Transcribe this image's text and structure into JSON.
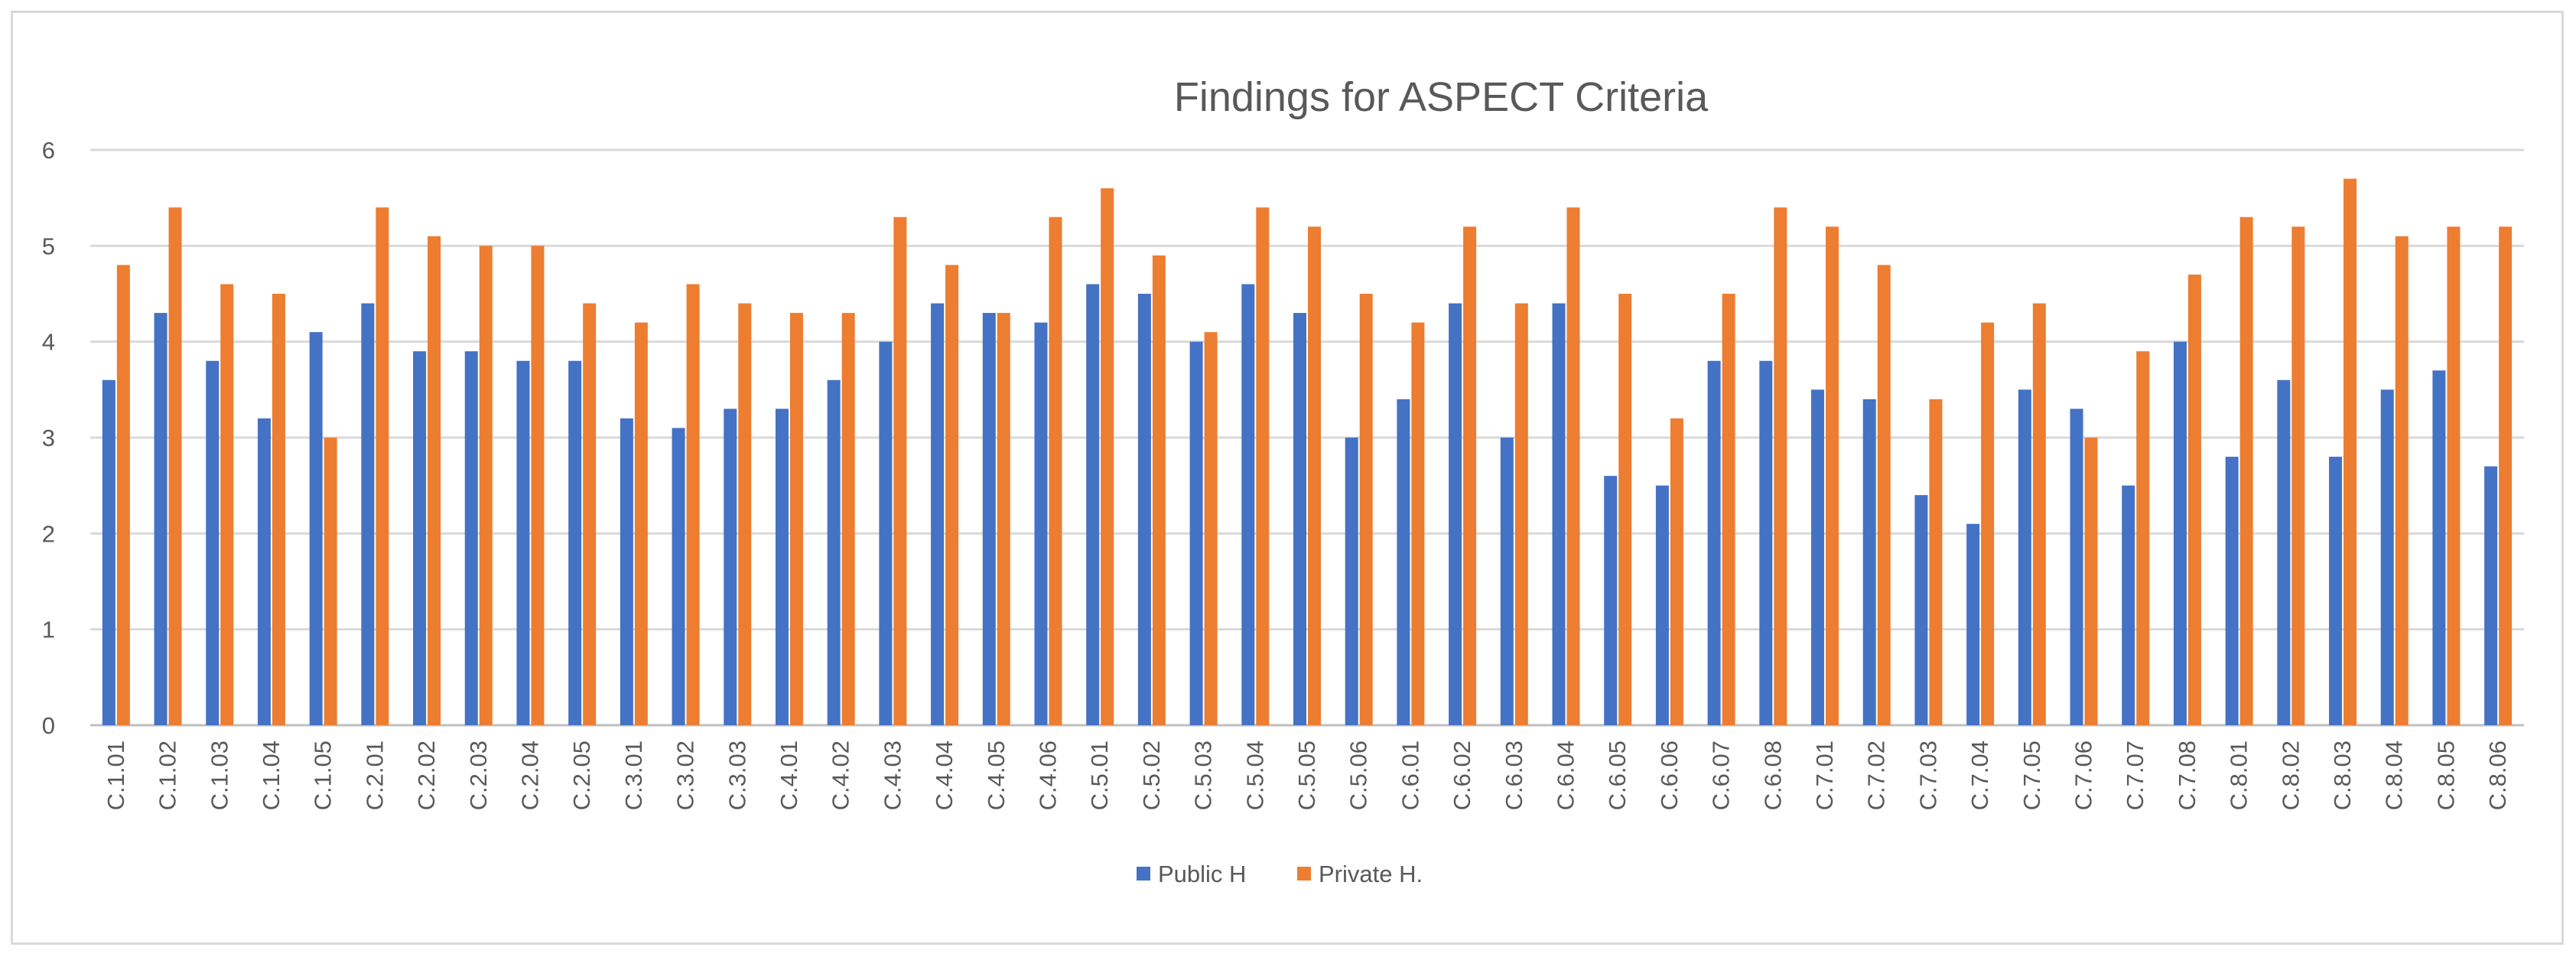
{
  "chart_data": {
    "type": "bar",
    "title": "Findings for ASPECT Criteria",
    "xlabel": "",
    "ylabel": "",
    "ylim": [
      0,
      6
    ],
    "yticks": [
      0,
      1,
      2,
      3,
      4,
      5,
      6
    ],
    "grid": "horizontal",
    "legend_position": "bottom",
    "categories": [
      "C.1.01",
      "C.1.02",
      "C.1.03",
      "C.1.04",
      "C.1.05",
      "C.2.01",
      "C.2.02",
      "C.2.03",
      "C.2.04",
      "C.2.05",
      "C.3.01",
      "C.3.02",
      "C.3.03",
      "C.4.01",
      "C.4.02",
      "C.4.03",
      "C.4.04",
      "C.4.05",
      "C.4.06",
      "C.5.01",
      "C.5.02",
      "C.5.03",
      "C.5.04",
      "C.5.05",
      "C.5.06",
      "C.6.01",
      "C.6.02",
      "C.6.03",
      "C.6.04",
      "C.6.05",
      "C.6.06",
      "C.6.07",
      "C.6.08",
      "C.7.01",
      "C.7.02",
      "C.7.03",
      "C.7.04",
      "C.7.05",
      "C.7.06",
      "C.7.07",
      "C.7.08",
      "C.8.01",
      "C.8.02",
      "C.8.03",
      "C.8.04",
      "C.8.05",
      "C.8.06"
    ],
    "series": [
      {
        "name": "Public H",
        "color": "#4472c4",
        "values": [
          3.6,
          4.3,
          3.8,
          3.2,
          4.1,
          4.4,
          3.9,
          3.9,
          3.8,
          3.8,
          3.2,
          3.1,
          3.3,
          3.3,
          3.6,
          4.0,
          4.4,
          4.3,
          4.2,
          4.6,
          4.5,
          4.0,
          4.6,
          4.3,
          3.0,
          3.4,
          4.4,
          3.0,
          4.4,
          2.6,
          2.5,
          3.8,
          3.8,
          3.5,
          3.4,
          2.4,
          2.1,
          3.5,
          3.3,
          2.5,
          4.0,
          2.8,
          3.6,
          2.8,
          3.5,
          3.7,
          2.7
        ]
      },
      {
        "name": "Private H.",
        "color": "#ed7d31",
        "values": [
          4.8,
          5.4,
          4.6,
          4.5,
          3.0,
          5.4,
          5.1,
          5.0,
          5.0,
          4.4,
          4.2,
          4.6,
          4.4,
          4.3,
          4.3,
          5.3,
          4.8,
          4.3,
          5.3,
          5.6,
          4.9,
          4.1,
          5.4,
          5.2,
          4.5,
          4.2,
          5.2,
          4.4,
          5.4,
          4.5,
          3.2,
          4.5,
          5.4,
          5.2,
          4.8,
          3.4,
          4.2,
          4.4,
          3.0,
          3.9,
          4.7,
          5.3,
          5.2,
          5.7,
          5.1,
          5.2,
          5.2
        ]
      }
    ]
  }
}
